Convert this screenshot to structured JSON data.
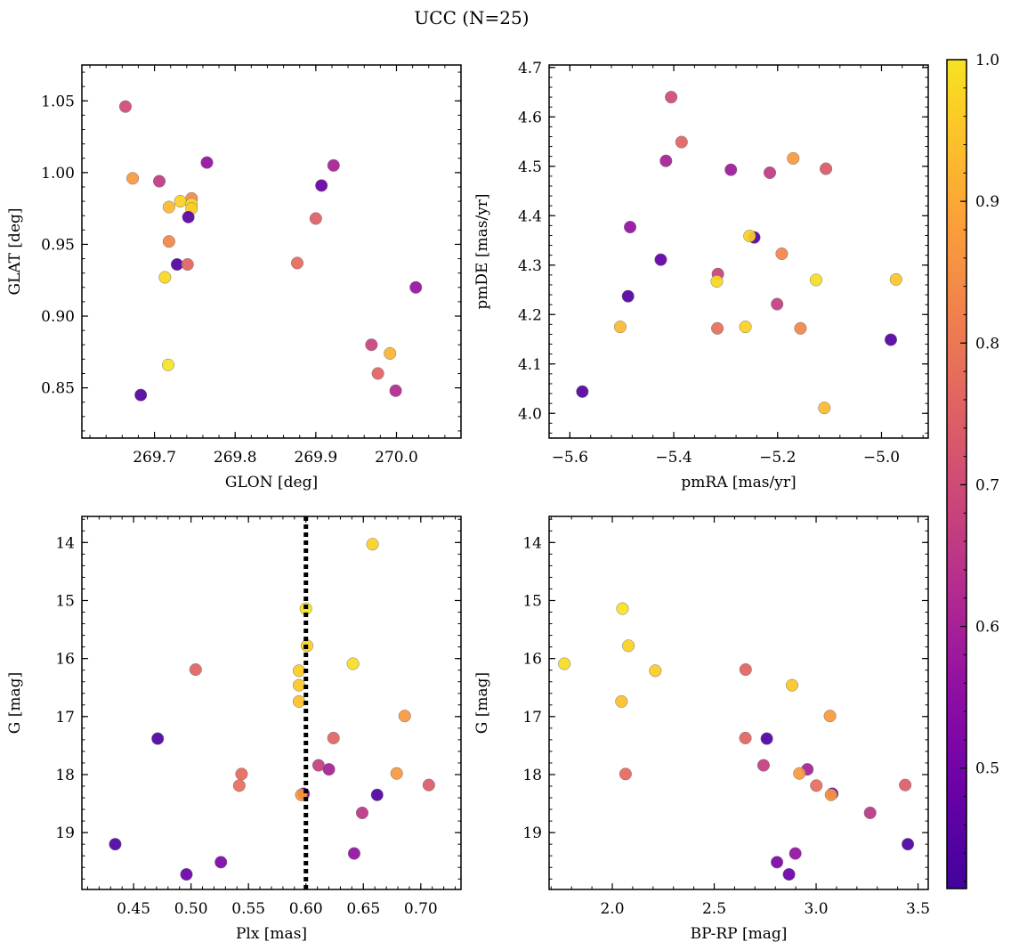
{
  "figure": {
    "title": "UCC (N=25)"
  },
  "colorbar": {
    "range": [
      0.415,
      1.0
    ],
    "ticks": [
      0.5,
      0.6,
      0.7,
      0.8,
      0.9,
      1.0
    ],
    "tick_labels": [
      "0.5",
      "0.6",
      "0.7",
      "0.8",
      "0.9",
      "1.0"
    ],
    "colormap": "plasma",
    "colormap_range": [
      0.1,
      0.95
    ]
  },
  "colors": {
    "point_edge": "#777777",
    "frame": "#000000",
    "vline": "#000000"
  },
  "chart_data": [
    {
      "type": "scatter",
      "id": "glon-glat",
      "xlabel": "GLON [deg]",
      "ylabel": "GLAT [deg]",
      "xlim": [
        269.61,
        270.08
      ],
      "ylim": [
        0.815,
        1.075
      ],
      "xticks": [
        269.7,
        269.8,
        269.9,
        270.0
      ],
      "xtick_labels": [
        "269.7",
        "269.8",
        "269.9",
        "270.0"
      ],
      "yticks": [
        0.85,
        0.9,
        0.95,
        1.0,
        1.05
      ],
      "ytick_labels": [
        "0.85",
        "0.90",
        "0.95",
        "1.00",
        "1.05"
      ],
      "points": [
        {
          "x": 269.664,
          "y": 1.046,
          "c": 0.7
        },
        {
          "x": 269.673,
          "y": 0.996,
          "c": 0.87
        },
        {
          "x": 269.706,
          "y": 0.994,
          "c": 0.66
        },
        {
          "x": 269.765,
          "y": 1.007,
          "c": 0.56
        },
        {
          "x": 269.922,
          "y": 1.005,
          "c": 0.6
        },
        {
          "x": 269.907,
          "y": 0.991,
          "c": 0.48
        },
        {
          "x": 269.746,
          "y": 0.982,
          "c": 0.84
        },
        {
          "x": 269.732,
          "y": 0.98,
          "c": 0.97
        },
        {
          "x": 269.746,
          "y": 0.978,
          "c": 0.99
        },
        {
          "x": 269.718,
          "y": 0.976,
          "c": 0.93
        },
        {
          "x": 269.746,
          "y": 0.975,
          "c": 0.96
        },
        {
          "x": 269.742,
          "y": 0.969,
          "c": 0.46
        },
        {
          "x": 269.9,
          "y": 0.968,
          "c": 0.75
        },
        {
          "x": 269.718,
          "y": 0.952,
          "c": 0.83
        },
        {
          "x": 269.728,
          "y": 0.936,
          "c": 0.44
        },
        {
          "x": 269.741,
          "y": 0.936,
          "c": 0.76
        },
        {
          "x": 269.877,
          "y": 0.937,
          "c": 0.77
        },
        {
          "x": 269.713,
          "y": 0.927,
          "c": 0.98
        },
        {
          "x": 270.024,
          "y": 0.92,
          "c": 0.57
        },
        {
          "x": 269.969,
          "y": 0.88,
          "c": 0.68
        },
        {
          "x": 269.992,
          "y": 0.874,
          "c": 0.92
        },
        {
          "x": 269.717,
          "y": 0.866,
          "c": 1.0
        },
        {
          "x": 269.977,
          "y": 0.86,
          "c": 0.76
        },
        {
          "x": 269.999,
          "y": 0.848,
          "c": 0.62
        },
        {
          "x": 269.683,
          "y": 0.845,
          "c": 0.45
        }
      ]
    },
    {
      "type": "scatter",
      "id": "pmra-pmde",
      "xlabel": "pmRA [mas/yr]",
      "ylabel": "pmDE [mas/yr]",
      "xlim": [
        -5.64,
        -4.91
      ],
      "ylim": [
        3.95,
        4.705
      ],
      "xticks": [
        -5.6,
        -5.4,
        -5.2,
        -5.0
      ],
      "xtick_labels": [
        "−5.6",
        "−5.4",
        "−5.2",
        "−5.0"
      ],
      "yticks": [
        4.0,
        4.1,
        4.2,
        4.3,
        4.4,
        4.5,
        4.6,
        4.7
      ],
      "ytick_labels": [
        "4.0",
        "4.1",
        "4.2",
        "4.3",
        "4.4",
        "4.5",
        "4.6",
        "4.7"
      ],
      "points": [
        {
          "x": -5.405,
          "y": 4.64,
          "c": 0.7
        },
        {
          "x": -5.385,
          "y": 4.549,
          "c": 0.76
        },
        {
          "x": -5.415,
          "y": 4.511,
          "c": 0.6
        },
        {
          "x": -5.29,
          "y": 4.493,
          "c": 0.58
        },
        {
          "x": -5.215,
          "y": 4.487,
          "c": 0.66
        },
        {
          "x": -5.17,
          "y": 4.516,
          "c": 0.87
        },
        {
          "x": -5.107,
          "y": 4.495,
          "c": 0.73
        },
        {
          "x": -5.484,
          "y": 4.377,
          "c": 0.56
        },
        {
          "x": -5.245,
          "y": 4.356,
          "c": 0.45
        },
        {
          "x": -5.254,
          "y": 4.359,
          "c": 0.97
        },
        {
          "x": -5.192,
          "y": 4.323,
          "c": 0.83
        },
        {
          "x": -5.425,
          "y": 4.311,
          "c": 0.47
        },
        {
          "x": -5.315,
          "y": 4.282,
          "c": 0.68
        },
        {
          "x": -5.317,
          "y": 4.267,
          "c": 0.98
        },
        {
          "x": -5.126,
          "y": 4.27,
          "c": 0.99
        },
        {
          "x": -4.972,
          "y": 4.271,
          "c": 0.95
        },
        {
          "x": -5.488,
          "y": 4.237,
          "c": 0.45
        },
        {
          "x": -5.201,
          "y": 4.221,
          "c": 0.67
        },
        {
          "x": -5.503,
          "y": 4.175,
          "c": 0.93
        },
        {
          "x": -5.262,
          "y": 4.175,
          "c": 0.97
        },
        {
          "x": -5.316,
          "y": 4.172,
          "c": 0.78
        },
        {
          "x": -5.156,
          "y": 4.172,
          "c": 0.83
        },
        {
          "x": -4.982,
          "y": 4.149,
          "c": 0.45
        },
        {
          "x": -5.11,
          "y": 4.011,
          "c": 0.93
        },
        {
          "x": -5.576,
          "y": 4.044,
          "c": 0.45
        }
      ]
    },
    {
      "type": "scatter",
      "id": "plx-g",
      "xlabel": "Plx [mas]",
      "ylabel": "G [mag]",
      "xlim": [
        0.405,
        0.735
      ],
      "ylim": [
        19.98,
        13.55
      ],
      "y_inverted": true,
      "xticks": [
        0.45,
        0.5,
        0.55,
        0.6,
        0.65,
        0.7
      ],
      "xtick_labels": [
        "0.45",
        "0.50",
        "0.55",
        "0.60",
        "0.65",
        "0.70"
      ],
      "yticks": [
        14,
        15,
        16,
        17,
        18,
        19
      ],
      "ytick_labels": [
        "14",
        "15",
        "16",
        "17",
        "18",
        "19"
      ],
      "vline": {
        "x": 0.6,
        "style": "dotted"
      },
      "points": [
        {
          "x": 0.658,
          "y": 14.03,
          "c": 0.97
        },
        {
          "x": 0.6,
          "y": 15.14,
          "c": 1.0
        },
        {
          "x": 0.601,
          "y": 15.78,
          "c": 0.97
        },
        {
          "x": 0.504,
          "y": 16.19,
          "c": 0.76
        },
        {
          "x": 0.641,
          "y": 16.09,
          "c": 0.99
        },
        {
          "x": 0.594,
          "y": 16.21,
          "c": 0.96
        },
        {
          "x": 0.594,
          "y": 16.46,
          "c": 0.95
        },
        {
          "x": 0.594,
          "y": 16.74,
          "c": 0.94
        },
        {
          "x": 0.686,
          "y": 16.99,
          "c": 0.87
        },
        {
          "x": 0.471,
          "y": 17.38,
          "c": 0.44
        },
        {
          "x": 0.624,
          "y": 17.37,
          "c": 0.76
        },
        {
          "x": 0.611,
          "y": 17.84,
          "c": 0.67
        },
        {
          "x": 0.62,
          "y": 17.91,
          "c": 0.6
        },
        {
          "x": 0.544,
          "y": 17.99,
          "c": 0.77
        },
        {
          "x": 0.679,
          "y": 17.98,
          "c": 0.87
        },
        {
          "x": 0.542,
          "y": 18.19,
          "c": 0.78
        },
        {
          "x": 0.707,
          "y": 18.18,
          "c": 0.74
        },
        {
          "x": 0.598,
          "y": 18.33,
          "c": 0.49
        },
        {
          "x": 0.596,
          "y": 18.35,
          "c": 0.87
        },
        {
          "x": 0.662,
          "y": 18.35,
          "c": 0.44
        },
        {
          "x": 0.649,
          "y": 18.66,
          "c": 0.65
        },
        {
          "x": 0.434,
          "y": 19.2,
          "c": 0.44
        },
        {
          "x": 0.642,
          "y": 19.36,
          "c": 0.56
        },
        {
          "x": 0.526,
          "y": 19.51,
          "c": 0.52
        },
        {
          "x": 0.496,
          "y": 19.72,
          "c": 0.49
        }
      ]
    },
    {
      "type": "scatter",
      "id": "bprp-g",
      "xlabel": "BP-RP [mag]",
      "ylabel": "G [mag]",
      "xlim": [
        1.69,
        3.55
      ],
      "ylim": [
        19.98,
        13.55
      ],
      "y_inverted": true,
      "xticks": [
        2.0,
        2.5,
        3.0,
        3.5
      ],
      "xtick_labels": [
        "2.0",
        "2.5",
        "3.0",
        "3.5"
      ],
      "yticks": [
        14,
        15,
        16,
        17,
        18,
        19
      ],
      "ytick_labels": [
        "14",
        "15",
        "16",
        "17",
        "18",
        "19"
      ],
      "points": [
        {
          "x": 2.05,
          "y": 15.14,
          "c": 1.0
        },
        {
          "x": 2.079,
          "y": 15.78,
          "c": 0.97
        },
        {
          "x": 1.765,
          "y": 16.09,
          "c": 0.99
        },
        {
          "x": 2.211,
          "y": 16.21,
          "c": 0.96
        },
        {
          "x": 2.654,
          "y": 16.19,
          "c": 0.76
        },
        {
          "x": 2.882,
          "y": 16.46,
          "c": 0.95
        },
        {
          "x": 2.045,
          "y": 16.74,
          "c": 0.94
        },
        {
          "x": 3.068,
          "y": 16.99,
          "c": 0.87
        },
        {
          "x": 2.653,
          "y": 17.37,
          "c": 0.76
        },
        {
          "x": 2.758,
          "y": 17.38,
          "c": 0.44
        },
        {
          "x": 2.742,
          "y": 17.84,
          "c": 0.67
        },
        {
          "x": 2.957,
          "y": 17.91,
          "c": 0.6
        },
        {
          "x": 2.065,
          "y": 17.99,
          "c": 0.77
        },
        {
          "x": 2.918,
          "y": 17.98,
          "c": 0.87
        },
        {
          "x": 3.001,
          "y": 18.19,
          "c": 0.78
        },
        {
          "x": 3.437,
          "y": 18.18,
          "c": 0.74
        },
        {
          "x": 3.079,
          "y": 18.33,
          "c": 0.49
        },
        {
          "x": 3.073,
          "y": 18.35,
          "c": 0.87
        },
        {
          "x": 3.265,
          "y": 18.66,
          "c": 0.65
        },
        {
          "x": 3.45,
          "y": 19.2,
          "c": 0.44
        },
        {
          "x": 2.898,
          "y": 19.36,
          "c": 0.56
        },
        {
          "x": 2.808,
          "y": 19.51,
          "c": 0.52
        },
        {
          "x": 2.867,
          "y": 19.72,
          "c": 0.49
        }
      ]
    }
  ]
}
